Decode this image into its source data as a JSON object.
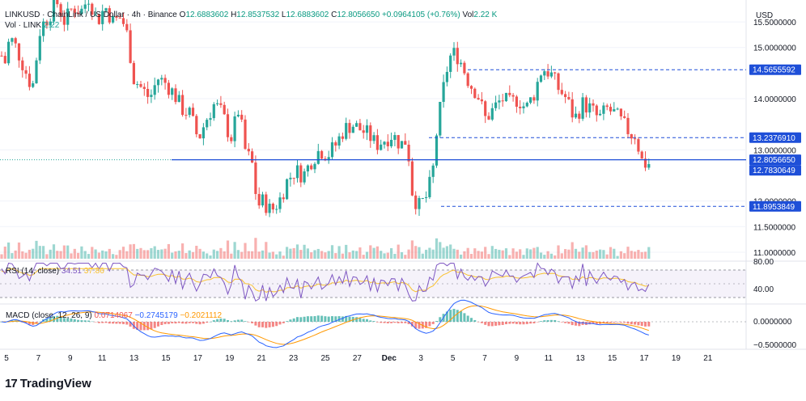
{
  "header": {
    "symbol": "LINKUSD · ChainLink / US Dollar · 4h · Binance",
    "o_label": "O",
    "o": "12.6883602",
    "h_label": "H",
    "h": "12.8537532",
    "l_label": "L",
    "l": "12.6883602",
    "c_label": "C",
    "c": "12.8056650",
    "change": "+0.0964105 (+0.76%)",
    "vol_label": "Vol",
    "vol": "2.22 K",
    "vol_link_label": "Vol · LINK",
    "vol_link": "2.22"
  },
  "currency": "USD",
  "footer": {
    "brand": "TradingView"
  },
  "chart_data": {
    "type": "candlestick",
    "price_axis": {
      "labels": [
        "15.5000000",
        "15.0000000",
        "14.0000000",
        "13.0000000",
        "12.0000000",
        "11.5000000",
        "11.0000000"
      ],
      "ticks": [
        15.5,
        15.0,
        14.0,
        13.0,
        12.0,
        11.5,
        11.0
      ]
    },
    "price_tags": [
      {
        "value": 14.5655592,
        "label": "14.5655592",
        "color": "#1e4fd8",
        "style": "dashed"
      },
      {
        "value": 13.237691,
        "label": "13.2376910",
        "color": "#1e4fd8",
        "style": "dashed"
      },
      {
        "value": 12.805665,
        "label": "12.8056650",
        "color": "#1e4fd8",
        "style": "solid"
      },
      {
        "value": 12.7830649,
        "label": "12.7830649",
        "color": "#1e4fd8",
        "style": "none"
      },
      {
        "value": 11.8953849,
        "label": "11.8953849",
        "color": "#1e4fd8",
        "style": "dashed"
      }
    ],
    "x_ticks": [
      "5",
      "7",
      "9",
      "11",
      "13",
      "15",
      "17",
      "19",
      "21",
      "23",
      "25",
      "27",
      "Dec",
      "3",
      "5",
      "7",
      "9",
      "11",
      "13",
      "15",
      "17",
      "19",
      "21"
    ],
    "candle_path": [
      [
        0,
        15.0
      ],
      [
        5,
        14.6
      ],
      [
        12,
        15.2
      ],
      [
        20,
        15.0
      ],
      [
        30,
        14.6
      ],
      [
        40,
        14.2
      ],
      [
        50,
        15.4
      ],
      [
        60,
        15.6
      ],
      [
        70,
        15.9
      ],
      [
        80,
        15.5
      ],
      [
        90,
        15.8
      ],
      [
        100,
        15.7
      ],
      [
        110,
        16.0
      ],
      [
        120,
        15.5
      ],
      [
        130,
        15.8
      ],
      [
        140,
        15.5
      ],
      [
        150,
        15.6
      ],
      [
        158,
        15.2
      ],
      [
        165,
        14.4
      ],
      [
        175,
        14.2
      ],
      [
        185,
        14.0
      ],
      [
        195,
        14.4
      ],
      [
        205,
        14.3
      ],
      [
        215,
        14.1
      ],
      [
        225,
        13.8
      ],
      [
        235,
        13.7
      ],
      [
        245,
        13.2
      ],
      [
        255,
        13.6
      ],
      [
        265,
        13.9
      ],
      [
        275,
        13.7
      ],
      [
        285,
        13.2
      ],
      [
        295,
        13.8
      ],
      [
        303,
        13.0
      ],
      [
        312,
        12.7
      ],
      [
        318,
        11.9
      ],
      [
        325,
        12.0
      ],
      [
        335,
        11.8
      ],
      [
        345,
        12.0
      ],
      [
        355,
        12.4
      ],
      [
        365,
        12.6
      ],
      [
        375,
        12.5
      ],
      [
        385,
        12.8
      ],
      [
        395,
        13.0
      ],
      [
        405,
        12.9
      ],
      [
        415,
        13.1
      ],
      [
        425,
        13.4
      ],
      [
        435,
        13.5
      ],
      [
        445,
        13.4
      ],
      [
        455,
        13.3
      ],
      [
        465,
        13.1
      ],
      [
        475,
        13.2
      ],
      [
        485,
        13.3
      ],
      [
        495,
        13.1
      ],
      [
        503,
        13.2
      ],
      [
        510,
        12.1
      ],
      [
        518,
        11.9
      ],
      [
        528,
        12.1
      ],
      [
        535,
        12.6
      ],
      [
        540,
        13.4
      ],
      [
        548,
        14.2
      ],
      [
        555,
        14.8
      ],
      [
        563,
        14.9
      ],
      [
        570,
        14.7
      ],
      [
        580,
        14.3
      ],
      [
        590,
        14.1
      ],
      [
        600,
        13.6
      ],
      [
        610,
        13.8
      ],
      [
        620,
        14.0
      ],
      [
        630,
        13.9
      ],
      [
        640,
        14.0
      ],
      [
        650,
        13.8
      ],
      [
        660,
        14.1
      ],
      [
        670,
        14.6
      ],
      [
        680,
        14.5
      ],
      [
        690,
        14.2
      ],
      [
        700,
        14.0
      ],
      [
        710,
        13.6
      ],
      [
        720,
        13.9
      ],
      [
        730,
        13.8
      ],
      [
        740,
        13.6
      ],
      [
        750,
        13.8
      ],
      [
        760,
        13.7
      ],
      [
        770,
        13.5
      ],
      [
        780,
        13.3
      ],
      [
        786,
        13.3
      ],
      [
        792,
        12.8
      ],
      [
        800,
        12.7
      ],
      [
        806,
        12.8
      ]
    ],
    "rsi": {
      "title": "RSI (14, close)",
      "value": "34.51",
      "value2": "37.86",
      "axis": [
        "80.00",
        "40.00"
      ],
      "band_upper": 70,
      "band_lower": 30
    },
    "macd": {
      "title": "MACD (close, 12, 26, 9)",
      "value1": "0.0714067",
      "value2": "−0.2745179",
      "value3": "−0.2021112",
      "axis": [
        "0.0000000",
        "−0.5000000"
      ]
    }
  },
  "colors": {
    "up": "#26a69a",
    "down": "#ef5350",
    "bluetag": "#1e4fd8",
    "rsi": "#7e57c2",
    "rsi_ma": "#f9c12e",
    "macd": "#2962ff",
    "signal": "#ff9800"
  }
}
